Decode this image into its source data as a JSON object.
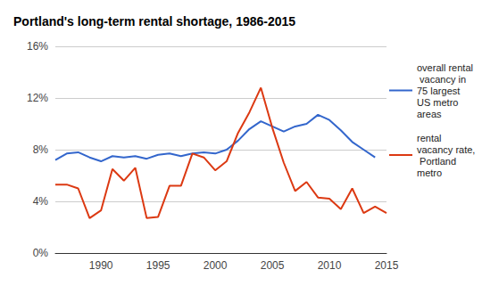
{
  "chart_data": {
    "type": "line",
    "title": "Portland's long-term rental shortage, 1986-2015",
    "x": [
      1986,
      1987,
      1988,
      1989,
      1990,
      1991,
      1992,
      1993,
      1994,
      1995,
      1996,
      1997,
      1998,
      1999,
      2000,
      2001,
      2002,
      2003,
      2004,
      2005,
      2006,
      2007,
      2008,
      2009,
      2010,
      2011,
      2012,
      2013,
      2014,
      2015
    ],
    "series": [
      {
        "name": "overall rental vacancy in 75 largest US metro areas",
        "color": "#3366cc",
        "values": [
          7.2,
          7.7,
          7.8,
          7.4,
          7.1,
          7.5,
          7.4,
          7.5,
          7.3,
          7.6,
          7.7,
          7.5,
          7.7,
          7.8,
          7.7,
          8.0,
          8.7,
          9.6,
          10.2,
          9.8,
          9.4,
          9.8,
          10.0,
          10.7,
          10.3,
          9.5,
          8.6,
          8.0,
          7.4,
          null
        ]
      },
      {
        "name": "rental vacancy rate, Portland metro",
        "color": "#dc3912",
        "values": [
          5.3,
          5.3,
          5.0,
          2.7,
          3.3,
          6.5,
          5.6,
          6.6,
          2.7,
          2.8,
          5.2,
          5.2,
          7.7,
          7.4,
          6.4,
          7.1,
          9.3,
          10.9,
          12.8,
          9.7,
          7.0,
          4.8,
          5.5,
          4.3,
          4.2,
          3.4,
          5.0,
          3.1,
          3.6,
          3.1
        ]
      }
    ],
    "xlim": [
      1986,
      2015
    ],
    "xticks": [
      1990,
      1995,
      2000,
      2005,
      2010,
      2015
    ],
    "ylim": [
      0,
      16
    ],
    "yticks": [
      {
        "value": 0,
        "label": "0%"
      },
      {
        "value": 4,
        "label": "4%"
      },
      {
        "value": 8,
        "label": "8%"
      },
      {
        "value": 12,
        "label": "12%"
      },
      {
        "value": 16,
        "label": "16%"
      }
    ],
    "grid": true,
    "legend": "right"
  }
}
